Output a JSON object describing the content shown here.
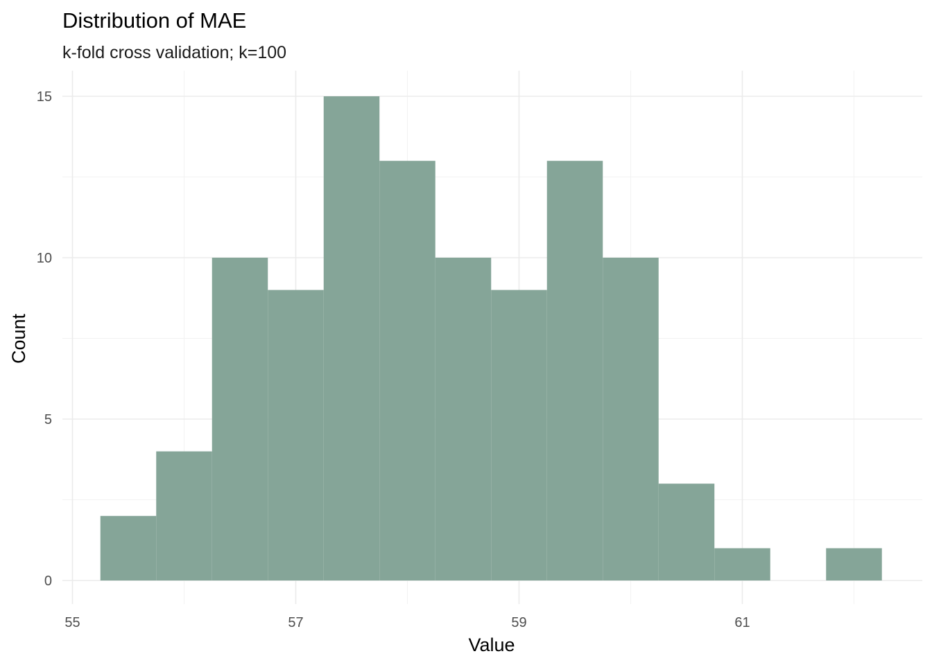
{
  "chart_data": {
    "type": "bar",
    "title": "Distribution of MAE",
    "subtitle": "k-fold cross validation; k=100",
    "xlabel": "Value",
    "ylabel": "Count",
    "bin_width": 0.5,
    "bins": [
      {
        "start": 55.25,
        "end": 55.75,
        "count": 2
      },
      {
        "start": 55.75,
        "end": 56.25,
        "count": 4
      },
      {
        "start": 56.25,
        "end": 56.75,
        "count": 10
      },
      {
        "start": 56.75,
        "end": 57.25,
        "count": 9
      },
      {
        "start": 57.25,
        "end": 57.75,
        "count": 15
      },
      {
        "start": 57.75,
        "end": 58.25,
        "count": 13
      },
      {
        "start": 58.25,
        "end": 58.75,
        "count": 10
      },
      {
        "start": 58.75,
        "end": 59.25,
        "count": 9
      },
      {
        "start": 59.25,
        "end": 59.75,
        "count": 13
      },
      {
        "start": 59.75,
        "end": 60.25,
        "count": 10
      },
      {
        "start": 60.25,
        "end": 60.75,
        "count": 3
      },
      {
        "start": 60.75,
        "end": 61.25,
        "count": 1
      },
      {
        "start": 61.25,
        "end": 61.75,
        "count": 0
      },
      {
        "start": 61.75,
        "end": 62.25,
        "count": 1
      }
    ],
    "xlim": [
      55,
      62.25
    ],
    "ylim": [
      0,
      15
    ],
    "x_ticks": [
      55,
      57,
      59,
      61
    ],
    "x_tick_labels": [
      "55",
      "57",
      "59",
      "61"
    ],
    "x_minor_ticks": [
      56,
      58,
      60,
      62
    ],
    "y_ticks": [
      0,
      5,
      10,
      15
    ],
    "y_tick_labels": [
      "0",
      "5",
      "10",
      "15"
    ],
    "y_minor_ticks": [
      2.5,
      7.5,
      12.5
    ],
    "grid": true,
    "legend": "none",
    "bar_color": "#85A598"
  }
}
